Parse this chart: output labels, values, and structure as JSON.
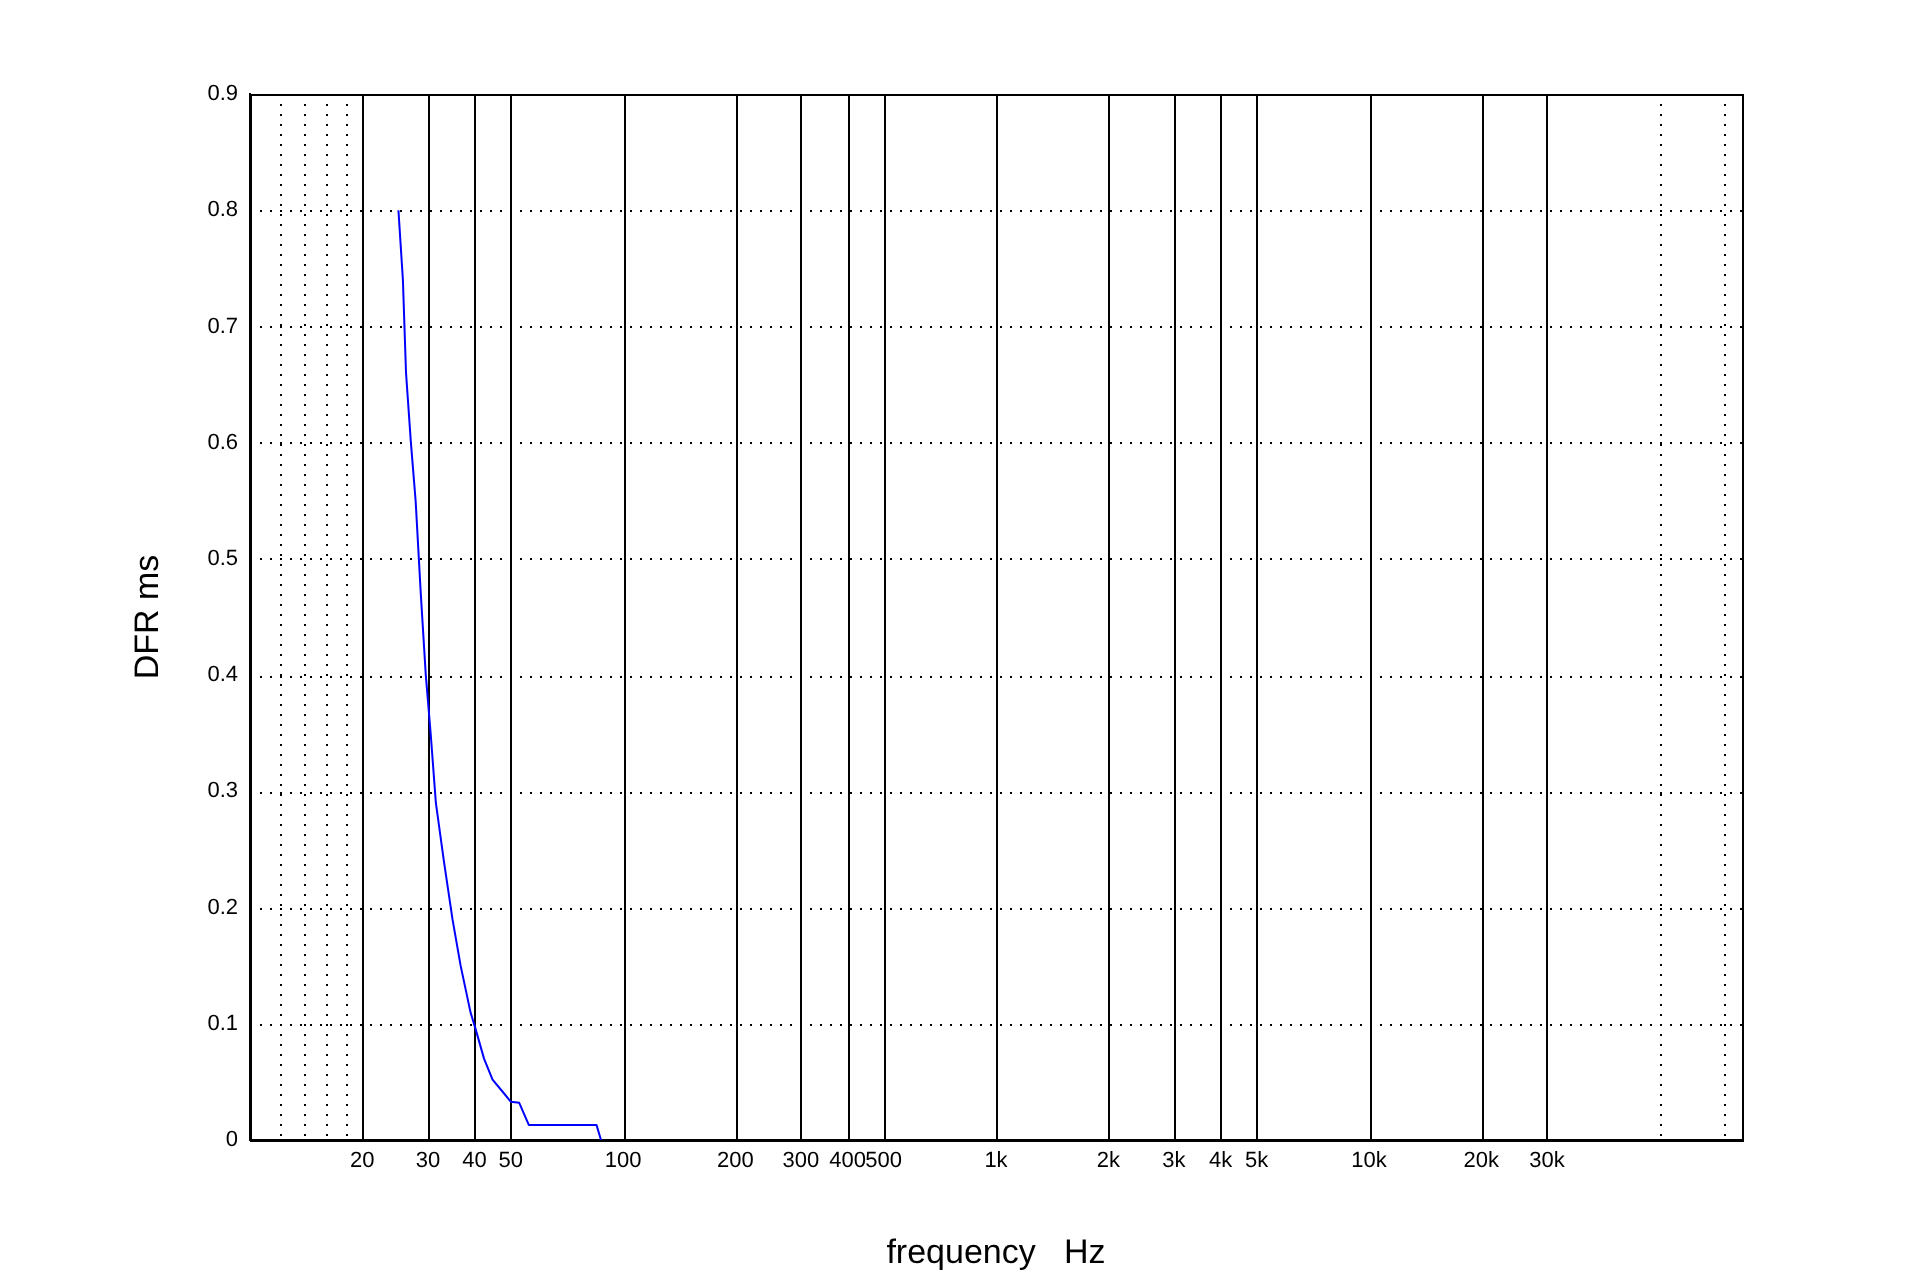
{
  "chart_data": {
    "type": "line",
    "xlabel": "frequency   Hz",
    "ylabel": "DFR ms",
    "log": "x",
    "grid": true,
    "legend": false,
    "marker": "none",
    "line_style": "solid",
    "xlim": [
      10,
      100000
    ],
    "xticks": [
      {
        "value": 12,
        "label": null
      },
      {
        "value": 14,
        "label": null
      },
      {
        "value": 16,
        "label": null
      },
      {
        "value": 18,
        "label": null
      },
      20,
      30,
      40,
      50,
      100,
      200,
      300,
      400,
      500,
      {
        "value": 1000,
        "label": "1k"
      },
      {
        "value": 2000,
        "label": "2k"
      },
      {
        "value": 3000,
        "label": "3k"
      },
      {
        "value": 4000,
        "label": "4k"
      },
      {
        "value": 5000,
        "label": "5k"
      },
      {
        "value": 10000,
        "label": "10k"
      },
      {
        "value": 20000,
        "label": "20k"
      },
      {
        "value": 30000,
        "label": "30k"
      },
      {
        "value": 60000,
        "label": null
      },
      {
        "value": 90000,
        "label": null
      }
    ],
    "ylim": [
      0,
      0.9
    ],
    "yticks": [
      0,
      0.1,
      0.2,
      0.3,
      0.4,
      0.5,
      0.6,
      0.7,
      0.8,
      0.9
    ],
    "series": [
      {
        "color": "#0000ff",
        "x": [
          25,
          25.7,
          26.2,
          27,
          27.8,
          28.7,
          29.6,
          30.5,
          31.5,
          33.1,
          34.9,
          36.7,
          39,
          40.3,
          42.4,
          44.7,
          48,
          50,
          52.7,
          55.9,
          84.9,
          87.3
        ],
        "values": [
          0.8,
          0.74,
          0.66,
          0.6,
          0.55,
          0.47,
          0.4,
          0.35,
          0.29,
          0.24,
          0.19,
          0.15,
          0.11,
          0.095,
          0.07,
          0.052,
          0.04,
          0.033,
          0.032,
          0.013,
          0.013,
          0
        ]
      }
    ]
  }
}
